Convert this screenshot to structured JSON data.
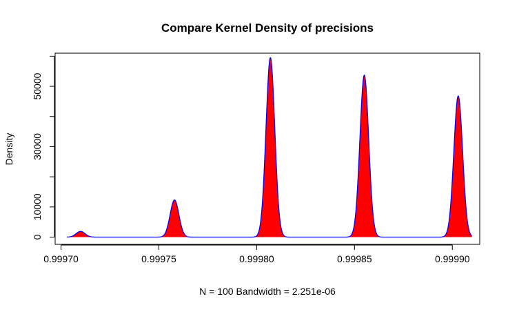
{
  "chart_data": {
    "type": "area",
    "title": "Compare Kernel Density of precisions",
    "xlabel": "N = 100   Bandwidth = 2.251e-06",
    "ylabel": "Density",
    "x_ticks": [
      "0.99970",
      "0.99975",
      "0.99980",
      "0.99985",
      "0.99990"
    ],
    "x_tick_values": [
      0.9997,
      0.99975,
      0.9998,
      0.99985,
      0.9999
    ],
    "y_ticks": [
      "0",
      "10000",
      "30000",
      "50000"
    ],
    "y_tick_values": [
      0,
      10000,
      30000,
      50000
    ],
    "y_minor_ticks": [
      20000,
      40000,
      60000
    ],
    "xlim": [
      0.999697,
      0.999914
    ],
    "ylim": [
      -2400,
      61000
    ],
    "grid": false,
    "legend": "none",
    "fill_color": "#ff0000",
    "line_color": "#0000ff",
    "curve_range": [
      0.999703,
      0.99991
    ],
    "peaks": [
      {
        "center": 0.99971,
        "height": 1900,
        "bandwidth": 2.251e-06
      },
      {
        "center": 0.999758,
        "height": 12300,
        "bandwidth": 2.251e-06
      },
      {
        "center": 0.999807,
        "height": 59500,
        "bandwidth": 2.251e-06
      },
      {
        "center": 0.999855,
        "height": 53700,
        "bandwidth": 2.251e-06
      },
      {
        "center": 0.999903,
        "height": 46800,
        "bandwidth": 2.251e-06
      }
    ]
  }
}
